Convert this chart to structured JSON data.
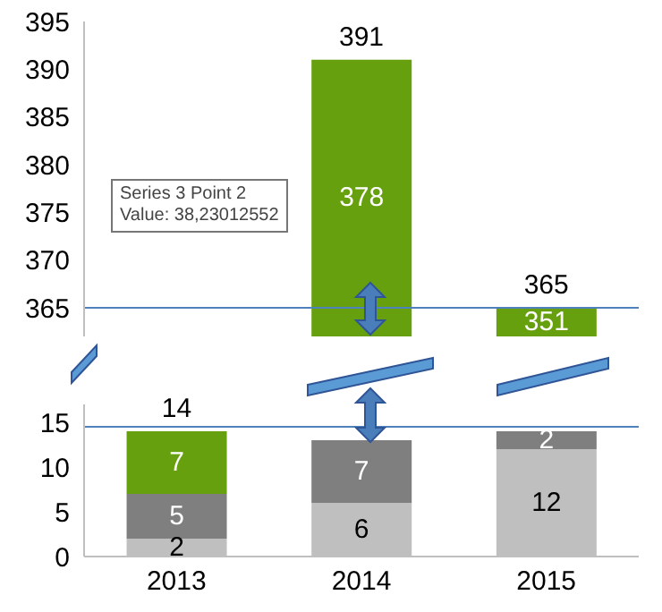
{
  "chart_data": [
    {
      "type": "bar",
      "tick_labels": "y",
      "categories": [
        "2013",
        "2014",
        "2015"
      ],
      "series": [
        {
          "color": "#66a00f",
          "values": [
            null,
            378,
            351
          ],
          "base": [
            null,
            13,
            14
          ],
          "value_labels": [
            null,
            "378",
            "351"
          ]
        }
      ],
      "annotations": [
        {
          "text": "391",
          "x": "2014",
          "y": 391
        },
        {
          "text": "365",
          "x": "2015",
          "y": 365
        }
      ],
      "ylim": [
        362,
        395
      ],
      "yticks": [
        365,
        370,
        375,
        380,
        385,
        390,
        395
      ],
      "ref_lines": [
        {
          "axis": "y",
          "value": 365,
          "color": "#4f81bd"
        }
      ]
    },
    {
      "type": "bar",
      "stacked": true,
      "categories": [
        "2013",
        "2014",
        "2015"
      ],
      "series": [
        {
          "color": "#bfbfbf",
          "values": [
            2,
            6,
            12
          ],
          "value_labels": [
            "2",
            "6",
            "12"
          ]
        },
        {
          "color": "#7f7f7f",
          "values": [
            5,
            7,
            2
          ],
          "value_labels": [
            "5",
            "7",
            "2"
          ]
        },
        {
          "color": "#66a00f",
          "values": [
            7,
            null,
            null
          ],
          "value_labels": [
            "7",
            null,
            null
          ]
        }
      ],
      "totals": [
        "14",
        null,
        null
      ],
      "ylim": [
        0,
        17
      ],
      "yticks": [
        0,
        5,
        10,
        15
      ],
      "ref_lines": [
        {
          "axis": "y",
          "value": 14.5,
          "color": "#4f81bd"
        }
      ],
      "annotations": [
        "Series 3 Point 2",
        "Value: 38,23012552"
      ]
    }
  ]
}
